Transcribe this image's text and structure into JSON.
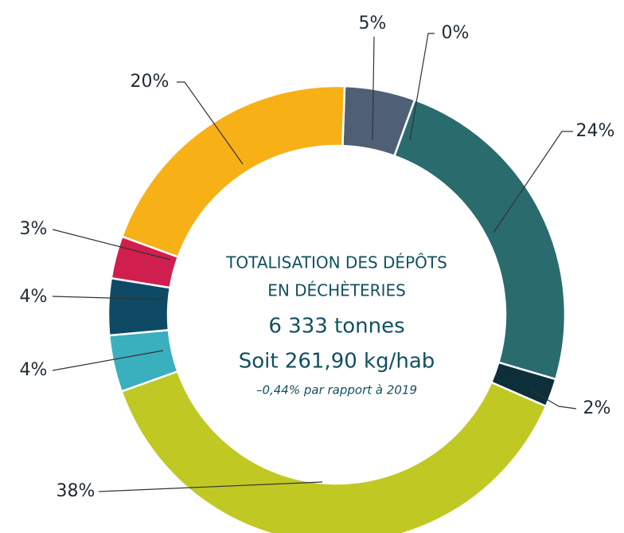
{
  "chart_data": {
    "type": "donut",
    "values": [
      5,
      0,
      24,
      2,
      38,
      4,
      4,
      3,
      20
    ],
    "value_labels": [
      "5%",
      "0%",
      "24%",
      "2%",
      "38%",
      "4%",
      "4%",
      "3%",
      "20%"
    ],
    "colors": [
      "#4f5f75",
      "#dfe6ea",
      "#2a6b6e",
      "#0d2f3a",
      "#c0c824",
      "#3aafbd",
      "#0e4a66",
      "#d01f4e",
      "#f7b016"
    ],
    "annotations": [
      "TOTALISATION DES DÉPÔTS",
      "EN DÉCHÈTERIES",
      "6 333 tonnes",
      "Soit 261,90 kg/hab",
      "–0,44% par rapport à 2019"
    ]
  }
}
